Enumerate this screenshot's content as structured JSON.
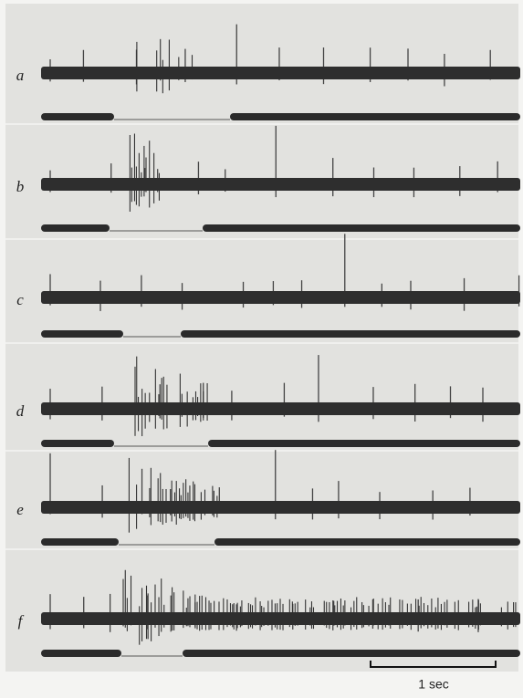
{
  "figure": {
    "panels": [
      {
        "label": "a"
      },
      {
        "label": "b"
      },
      {
        "label": "c"
      },
      {
        "label": "d"
      },
      {
        "label": "e"
      },
      {
        "label": "f"
      }
    ],
    "scale_bar": {
      "label": "1 sec"
    }
  }
}
